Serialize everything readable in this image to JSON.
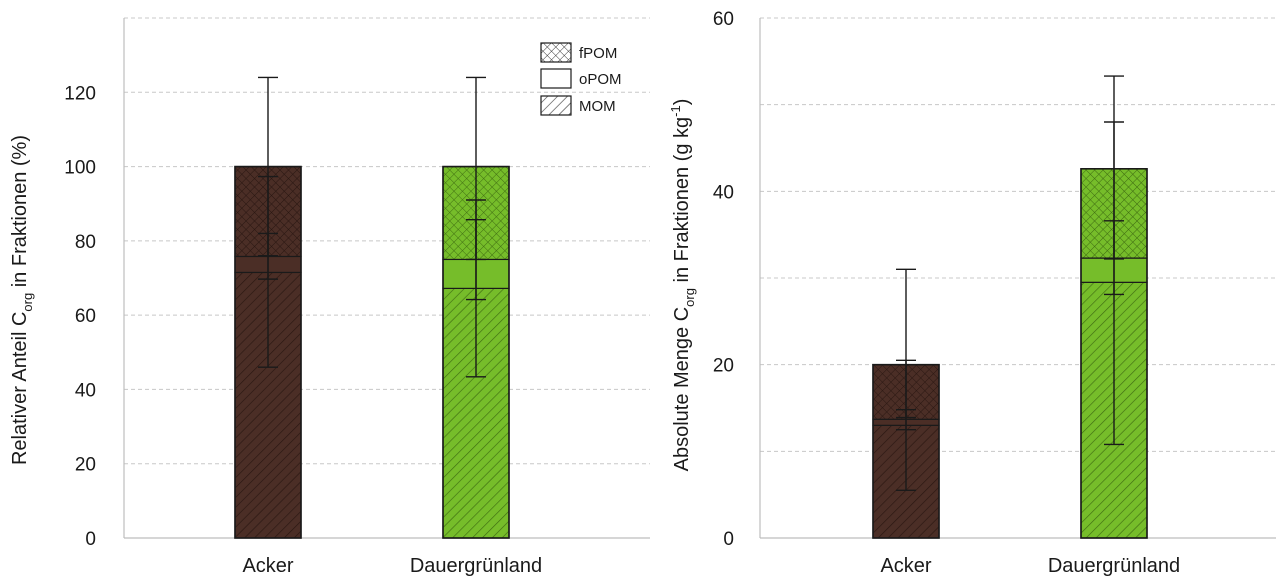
{
  "colors": {
    "acker": "#4b2e26",
    "dauergruenland": "#76bd2a",
    "grid": "#c8c8c8",
    "outline": "#1a1a1a"
  },
  "legend": {
    "items": [
      {
        "label": "fPOM",
        "pattern": "crosshatch"
      },
      {
        "label": "oPOM",
        "pattern": "solid"
      },
      {
        "label": "MOM",
        "pattern": "diagonal-hatch"
      }
    ]
  },
  "chart_data": [
    {
      "type": "bar",
      "stacked": true,
      "ylabel_main": "Relativer Anteil C",
      "ylabel_sub": "org",
      "ylabel_rest": " in Fraktionen (%)",
      "ylim": [
        0,
        140
      ],
      "yticks": [
        0,
        20,
        40,
        60,
        80,
        100,
        120
      ],
      "grid": true,
      "legend_position": "top-right",
      "categories": [
        "Acker",
        "Dauergrünland"
      ],
      "series": [
        {
          "name": "MOM",
          "values": [
            71.5,
            67.2
          ],
          "err_upper": [
            97.3,
            91.0
          ],
          "err_lower": [
            46.0,
            43.4
          ]
        },
        {
          "name": "oPOM",
          "values": [
            4.3,
            7.8
          ],
          "err_upper": [
            82.0,
            85.7
          ],
          "err_lower": [
            69.7,
            64.2
          ]
        },
        {
          "name": "fPOM",
          "values": [
            24.2,
            25.0
          ],
          "err_upper": [
            124.0,
            124.0
          ],
          "err_lower": [
            76.0,
            75.0
          ]
        }
      ]
    },
    {
      "type": "bar",
      "stacked": true,
      "ylabel_main": "Absolute Menge C",
      "ylabel_sub": "org",
      "ylabel_rest": " in Fraktionen (g kg",
      "ylabel_sup": "-1",
      "ylabel_end": ")",
      "ylim": [
        0,
        60
      ],
      "yticks": [
        0,
        20,
        40,
        60
      ],
      "grid": true,
      "categories": [
        "Acker",
        "Dauergrünland"
      ],
      "series": [
        {
          "name": "MOM",
          "values": [
            13.0,
            29.5
          ],
          "err_upper": [
            20.5,
            48.0
          ],
          "err_lower": [
            5.5,
            10.8
          ]
        },
        {
          "name": "oPOM",
          "values": [
            0.7,
            2.8
          ],
          "err_upper": [
            14.8,
            36.6
          ],
          "err_lower": [
            12.5,
            28.1
          ]
        },
        {
          "name": "fPOM",
          "values": [
            6.3,
            10.3
          ],
          "err_upper": [
            31.0,
            53.3
          ],
          "err_lower": [
            13.9,
            32.2
          ]
        }
      ]
    }
  ]
}
